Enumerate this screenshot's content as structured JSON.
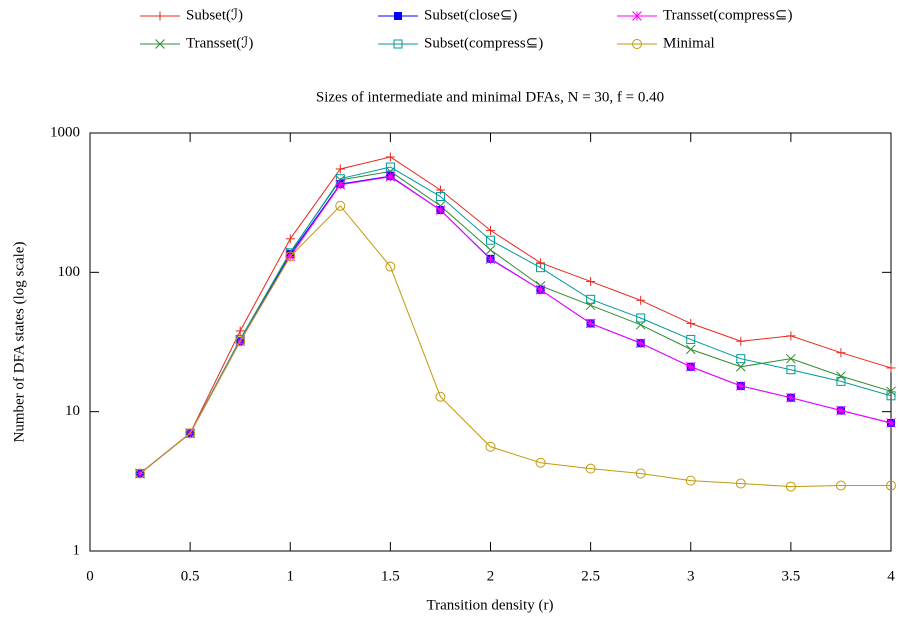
{
  "chart_data": {
    "type": "line",
    "title": "Sizes of intermediate and minimal DFAs, N = 30, f = 0.40",
    "x_label": "Transition density (r)",
    "y_label": "Number of DFA states (log scale)",
    "xlim": [
      0,
      4
    ],
    "xticks": [
      0,
      0.5,
      1,
      1.5,
      2,
      2.5,
      3,
      3.5,
      4
    ],
    "ylim": [
      1,
      1000
    ],
    "yticks": [
      1,
      10,
      100,
      1000
    ],
    "y_log": true,
    "legend": "top",
    "x": [
      0.25,
      0.5,
      0.75,
      1,
      1.25,
      1.5,
      1.75,
      2,
      2.25,
      2.5,
      2.75,
      3,
      3.25,
      3.5,
      3.75,
      4
    ],
    "series": [
      {
        "name": "Subset(ℐ)",
        "color": "#e8281e",
        "marker": "plus",
        "values": [
          3.6,
          7,
          38,
          174,
          552,
          673,
          390,
          200,
          117,
          86,
          63,
          43,
          32,
          35,
          26.5,
          20.6
        ]
      },
      {
        "name": "Transset(ℐ)",
        "color": "#2e8b2e",
        "marker": "cross",
        "values": [
          3.6,
          7,
          33,
          140,
          460,
          530,
          300,
          145,
          80,
          58,
          42,
          28,
          21,
          24,
          18,
          14
        ]
      },
      {
        "name": "Subset(close⊆)",
        "color": "#0000ff",
        "marker": "filled-square",
        "values": [
          3.6,
          7,
          32,
          135,
          430,
          490,
          280,
          125,
          75,
          43,
          31,
          21,
          15.3,
          12.6,
          10.2,
          8.3
        ]
      },
      {
        "name": "Subset(compress⊆)",
        "color": "#009a9a",
        "marker": "open-square",
        "values": [
          3.6,
          7,
          33,
          138,
          470,
          570,
          350,
          170,
          108,
          64,
          47,
          33,
          24,
          20,
          16.5,
          13
        ]
      },
      {
        "name": "Transset(compress⊆)",
        "color": "#ff00ff",
        "marker": "star",
        "values": [
          3.6,
          7,
          32,
          130,
          425,
          485,
          280,
          124,
          75,
          43,
          31,
          21,
          15.3,
          12.6,
          10.2,
          8.3
        ]
      },
      {
        "name": "Minimal",
        "color": "#c09a10",
        "marker": "open-circle",
        "values": [
          3.6,
          7,
          32,
          130,
          300,
          110,
          12.8,
          5.6,
          4.3,
          3.9,
          3.6,
          3.2,
          3.05,
          2.9,
          2.95,
          2.95
        ]
      }
    ]
  }
}
